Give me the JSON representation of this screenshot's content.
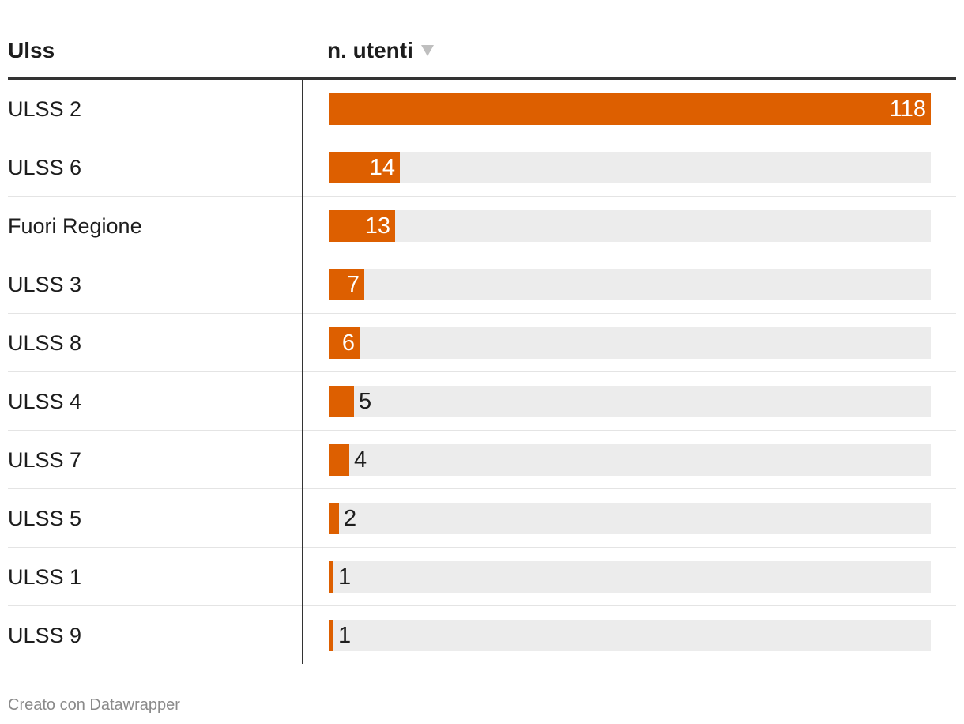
{
  "table": {
    "columns": [
      "Ulss",
      "n. utenti"
    ],
    "sort_column": "n. utenti",
    "sort_direction": "descending"
  },
  "chart_data": {
    "type": "table",
    "columns": [
      "Ulss",
      "n. utenti"
    ],
    "categories": [
      "ULSS 2",
      "ULSS 6",
      "Fuori Regione",
      "ULSS 3",
      "ULSS 8",
      "ULSS 4",
      "ULSS 7",
      "ULSS 5",
      "ULSS 1",
      "ULSS 9"
    ],
    "values": [
      118,
      14,
      13,
      7,
      6,
      5,
      4,
      2,
      1,
      1
    ],
    "bar_max": 118,
    "bar_color": "#dd5f00",
    "track_color": "#ececec"
  },
  "footer": {
    "credit": "Creato con Datawrapper"
  }
}
